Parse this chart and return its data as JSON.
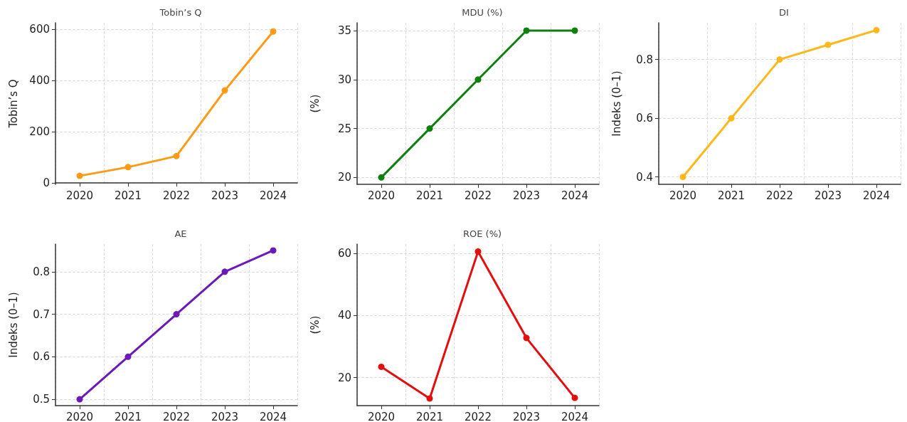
{
  "chart_data": [
    {
      "type": "line",
      "title": "Tobin’s Q",
      "ylabel": "Tobin’s Q",
      "categories": [
        "2020",
        "2021",
        "2022",
        "2023",
        "2024"
      ],
      "series": [
        {
          "color": "#ff9a14",
          "values": [
            28,
            62,
            105,
            361,
            591
          ]
        }
      ],
      "ylim": [
        -5,
        625
      ],
      "yticks": [
        0,
        200,
        400,
        600
      ],
      "grid": true,
      "marker": "circle",
      "line_style": "solid"
    },
    {
      "type": "line",
      "title": "MDU (%)",
      "ylabel": "(%)",
      "categories": [
        "2020",
        "2021",
        "2022",
        "2023",
        "2024"
      ],
      "series": [
        {
          "color": "#0e800e",
          "values": [
            20,
            25,
            30,
            35,
            35
          ]
        }
      ],
      "ylim": [
        19.3,
        35.8
      ],
      "yticks": [
        20,
        25,
        30,
        35
      ],
      "grid": true,
      "marker": "circle",
      "line_style": "solid"
    },
    {
      "type": "line",
      "title": "DI",
      "ylabel": "Indeks (0–1)",
      "categories": [
        "2020",
        "2021",
        "2022",
        "2023",
        "2024"
      ],
      "series": [
        {
          "color": "#ffb81c",
          "values": [
            0.4,
            0.6,
            0.8,
            0.85,
            0.9
          ]
        }
      ],
      "ylim": [
        0.375,
        0.925
      ],
      "yticks": [
        0.4,
        0.6,
        0.8
      ],
      "grid": true,
      "marker": "circle",
      "line_style": "solid"
    },
    {
      "type": "line",
      "title": "AE",
      "ylabel": "Indeks (0–1)",
      "categories": [
        "2020",
        "2021",
        "2022",
        "2023",
        "2024"
      ],
      "series": [
        {
          "color": "#6a1ab8",
          "values": [
            0.5,
            0.6,
            0.7,
            0.8,
            0.85
          ]
        }
      ],
      "ylim": [
        0.485,
        0.865
      ],
      "yticks": [
        0.5,
        0.6,
        0.7,
        0.8
      ],
      "grid": true,
      "marker": "circle",
      "line_style": "solid"
    },
    {
      "type": "line",
      "title": "ROE (%)",
      "ylabel": "(%)",
      "categories": [
        "2020",
        "2021",
        "2022",
        "2023",
        "2024"
      ],
      "series": [
        {
          "color": "#e30e0e",
          "values": [
            23.5,
            13.3,
            60.6,
            32.8,
            13.5
          ]
        }
      ],
      "ylim": [
        11,
        63
      ],
      "yticks": [
        20,
        40,
        60
      ],
      "grid": true,
      "marker": "circle",
      "line_style": "solid"
    }
  ]
}
